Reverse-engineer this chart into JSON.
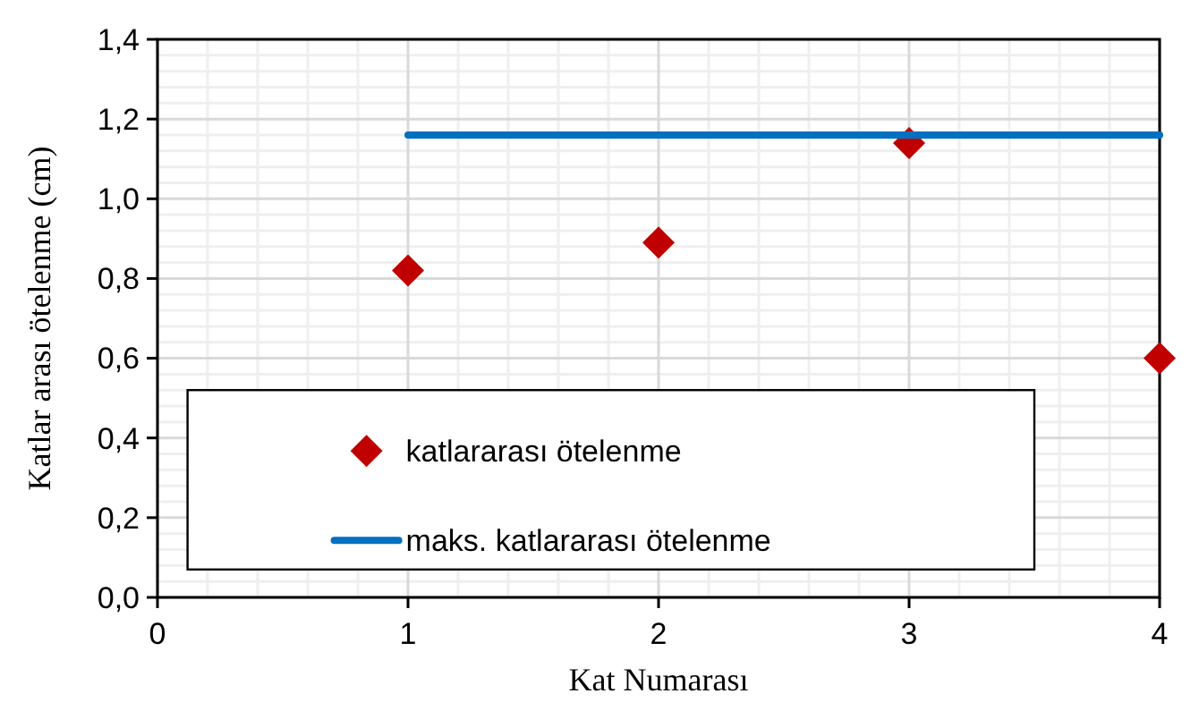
{
  "chart_data": {
    "type": "scatter",
    "xlabel": "Kat Numarası",
    "ylabel": "Katlar arası ötelenme (cm)",
    "x": [
      1,
      2,
      3,
      4
    ],
    "series": [
      {
        "name": "katlararası ötelenme",
        "color": "#c00000",
        "values": [
          0.82,
          0.89,
          1.14,
          0.6
        ],
        "marker": "diamond"
      },
      {
        "name": "maks. katlararası  ötelenme",
        "type": "line",
        "color": "#0070c0",
        "x": [
          1,
          4
        ],
        "values": [
          1.16,
          1.16
        ],
        "marker": "none",
        "line_style": "solid"
      }
    ],
    "xlim": [
      0,
      4
    ],
    "xticks": [
      0,
      1,
      2,
      3,
      4
    ],
    "ylim": [
      0,
      1.4
    ],
    "yticks": [
      {
        "value": 0,
        "label": "0,0"
      },
      {
        "value": 0.2,
        "label": "0,2"
      },
      {
        "value": 0.4,
        "label": "0,4"
      },
      {
        "value": 0.6,
        "label": "0,6"
      },
      {
        "value": 0.8,
        "label": "0,8"
      },
      {
        "value": 1,
        "label": "1,0"
      },
      {
        "value": 1.2,
        "label": "1,2"
      },
      {
        "value": 1.4,
        "label": "1,4"
      }
    ],
    "grid": true,
    "legend": "bottom"
  }
}
